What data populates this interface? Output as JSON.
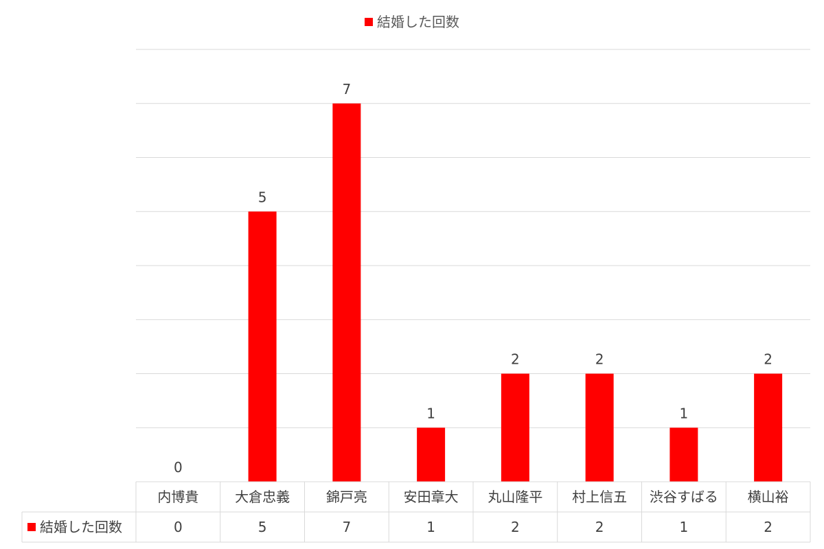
{
  "chart_data": {
    "type": "bar",
    "categories": [
      "内博貴",
      "大倉忠義",
      "錦戸亮",
      "安田章大",
      "丸山隆平",
      "村上信五",
      "渋谷すばる",
      "横山裕"
    ],
    "series": [
      {
        "name": "結婚した回数",
        "values": [
          0,
          5,
          7,
          1,
          2,
          2,
          1,
          2
        ]
      }
    ],
    "ylim": [
      0,
      8
    ],
    "grid": true,
    "legend": "top-center",
    "data_labels": true,
    "data_table": true,
    "colors": {
      "bar": "#FF0000",
      "grid": "#D9D9D9",
      "text": "#404040"
    }
  }
}
